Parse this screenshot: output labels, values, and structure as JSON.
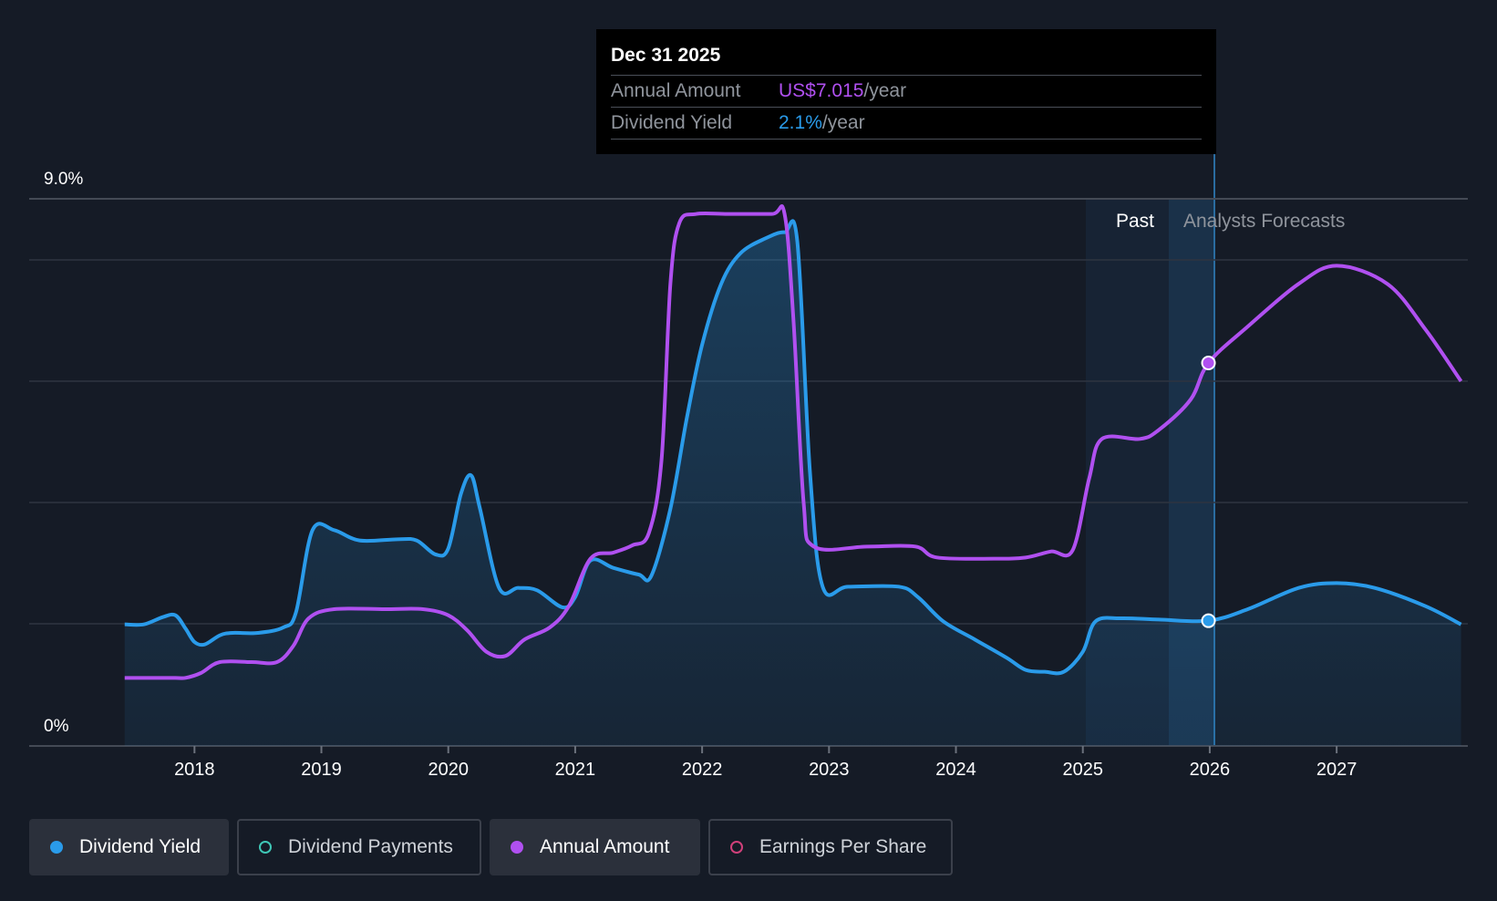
{
  "tooltip": {
    "date": "Dec 31 2025",
    "annual_amount_label": "Annual Amount",
    "annual_amount_value": "US$7.015",
    "annual_amount_unit": "/year",
    "dividend_yield_label": "Dividend Yield",
    "dividend_yield_value": "2.1%",
    "dividend_yield_unit": "/year"
  },
  "regions": {
    "past": "Past",
    "forecast": "Analysts Forecasts"
  },
  "legend": [
    {
      "label": "Dividend Yield",
      "color": "#2a9bea",
      "active": true
    },
    {
      "label": "Dividend Payments",
      "color": "#3fc7b6",
      "active": false
    },
    {
      "label": "Annual Amount",
      "color": "#b050f0",
      "active": true
    },
    {
      "label": "Earnings Per Share",
      "color": "#d0407a",
      "active": false
    }
  ],
  "colors": {
    "background": "#151b26",
    "yield": "#2a9bea",
    "annual_amount": "#b050f0",
    "grid": "#2e3440"
  },
  "chart_data": {
    "type": "line",
    "x_ticks": [
      "2018",
      "2019",
      "2020",
      "2021",
      "2022",
      "2023",
      "2024",
      "2025",
      "2026",
      "2027"
    ],
    "y_ticks": [
      "9.0%",
      "0%"
    ],
    "ylim": [
      0,
      9.0
    ],
    "xlim": [
      2017.15,
      2027.98
    ],
    "grid": true,
    "legend_position": "bottom",
    "past_start": 2024.98,
    "forecast_start": 2025.99,
    "highlight_date": 2025.99,
    "series": [
      {
        "name": "Dividend Yield",
        "unit": "%",
        "area": true,
        "points": [
          [
            2017.45,
            2.0
          ],
          [
            2017.6,
            2.0
          ],
          [
            2017.75,
            2.12
          ],
          [
            2017.85,
            2.15
          ],
          [
            2017.93,
            1.93
          ],
          [
            2018.0,
            1.71
          ],
          [
            2018.08,
            1.67
          ],
          [
            2018.2,
            1.82
          ],
          [
            2018.3,
            1.86
          ],
          [
            2018.5,
            1.86
          ],
          [
            2018.7,
            1.95
          ],
          [
            2018.8,
            2.2
          ],
          [
            2018.93,
            3.55
          ],
          [
            2019.1,
            3.55
          ],
          [
            2019.3,
            3.38
          ],
          [
            2019.6,
            3.4
          ],
          [
            2019.75,
            3.38
          ],
          [
            2019.9,
            3.15
          ],
          [
            2020.0,
            3.25
          ],
          [
            2020.1,
            4.15
          ],
          [
            2020.18,
            4.45
          ],
          [
            2020.25,
            3.9
          ],
          [
            2020.4,
            2.6
          ],
          [
            2020.55,
            2.6
          ],
          [
            2020.7,
            2.56
          ],
          [
            2020.9,
            2.28
          ],
          [
            2021.0,
            2.45
          ],
          [
            2021.12,
            3.05
          ],
          [
            2021.3,
            2.93
          ],
          [
            2021.5,
            2.82
          ],
          [
            2021.6,
            2.8
          ],
          [
            2021.75,
            3.9
          ],
          [
            2021.88,
            5.4
          ],
          [
            2022.0,
            6.6
          ],
          [
            2022.15,
            7.6
          ],
          [
            2022.3,
            8.1
          ],
          [
            2022.5,
            8.35
          ],
          [
            2022.65,
            8.45
          ],
          [
            2022.75,
            8.3
          ],
          [
            2022.85,
            4.5
          ],
          [
            2022.95,
            2.62
          ],
          [
            2023.15,
            2.62
          ],
          [
            2023.55,
            2.62
          ],
          [
            2023.7,
            2.45
          ],
          [
            2023.9,
            2.05
          ],
          [
            2024.15,
            1.75
          ],
          [
            2024.4,
            1.45
          ],
          [
            2024.55,
            1.25
          ],
          [
            2024.7,
            1.22
          ],
          [
            2024.85,
            1.22
          ],
          [
            2025.0,
            1.55
          ],
          [
            2025.1,
            2.05
          ],
          [
            2025.3,
            2.1
          ],
          [
            2025.6,
            2.08
          ],
          [
            2025.99,
            2.06
          ],
          [
            2026.3,
            2.25
          ],
          [
            2026.7,
            2.6
          ],
          [
            2027.0,
            2.68
          ],
          [
            2027.3,
            2.6
          ],
          [
            2027.7,
            2.3
          ],
          [
            2027.98,
            2.0
          ]
        ]
      },
      {
        "name": "Annual Amount",
        "points": [
          [
            2017.45,
            1.12
          ],
          [
            2017.6,
            1.12
          ],
          [
            2017.85,
            1.12
          ],
          [
            2017.93,
            1.12
          ],
          [
            2018.05,
            1.2
          ],
          [
            2018.2,
            1.38
          ],
          [
            2018.45,
            1.38
          ],
          [
            2018.65,
            1.38
          ],
          [
            2018.78,
            1.65
          ],
          [
            2018.9,
            2.1
          ],
          [
            2019.1,
            2.25
          ],
          [
            2019.5,
            2.25
          ],
          [
            2019.8,
            2.25
          ],
          [
            2020.0,
            2.15
          ],
          [
            2020.15,
            1.9
          ],
          [
            2020.3,
            1.55
          ],
          [
            2020.45,
            1.48
          ],
          [
            2020.6,
            1.75
          ],
          [
            2020.8,
            1.95
          ],
          [
            2020.95,
            2.3
          ],
          [
            2021.12,
            3.08
          ],
          [
            2021.3,
            3.18
          ],
          [
            2021.45,
            3.3
          ],
          [
            2021.58,
            3.5
          ],
          [
            2021.68,
            4.7
          ],
          [
            2021.75,
            7.6
          ],
          [
            2021.82,
            8.6
          ],
          [
            2021.95,
            8.75
          ],
          [
            2022.2,
            8.75
          ],
          [
            2022.55,
            8.75
          ],
          [
            2022.65,
            8.75
          ],
          [
            2022.72,
            7.0
          ],
          [
            2022.8,
            4.0
          ],
          [
            2022.88,
            3.28
          ],
          [
            2023.3,
            3.28
          ],
          [
            2023.68,
            3.28
          ],
          [
            2023.85,
            3.1
          ],
          [
            2024.3,
            3.08
          ],
          [
            2024.55,
            3.1
          ],
          [
            2024.75,
            3.2
          ],
          [
            2024.92,
            3.22
          ],
          [
            2025.05,
            4.4
          ],
          [
            2025.15,
            5.05
          ],
          [
            2025.45,
            5.05
          ],
          [
            2025.6,
            5.2
          ],
          [
            2025.85,
            5.7
          ],
          [
            2025.99,
            6.3
          ],
          [
            2026.3,
            6.9
          ],
          [
            2026.7,
            7.6
          ],
          [
            2027.0,
            7.9
          ],
          [
            2027.4,
            7.6
          ],
          [
            2027.7,
            6.85
          ],
          [
            2027.98,
            6.0
          ]
        ]
      }
    ],
    "highlight_values": {
      "yield": 2.06,
      "annual_amount_scaled": 6.3
    }
  }
}
